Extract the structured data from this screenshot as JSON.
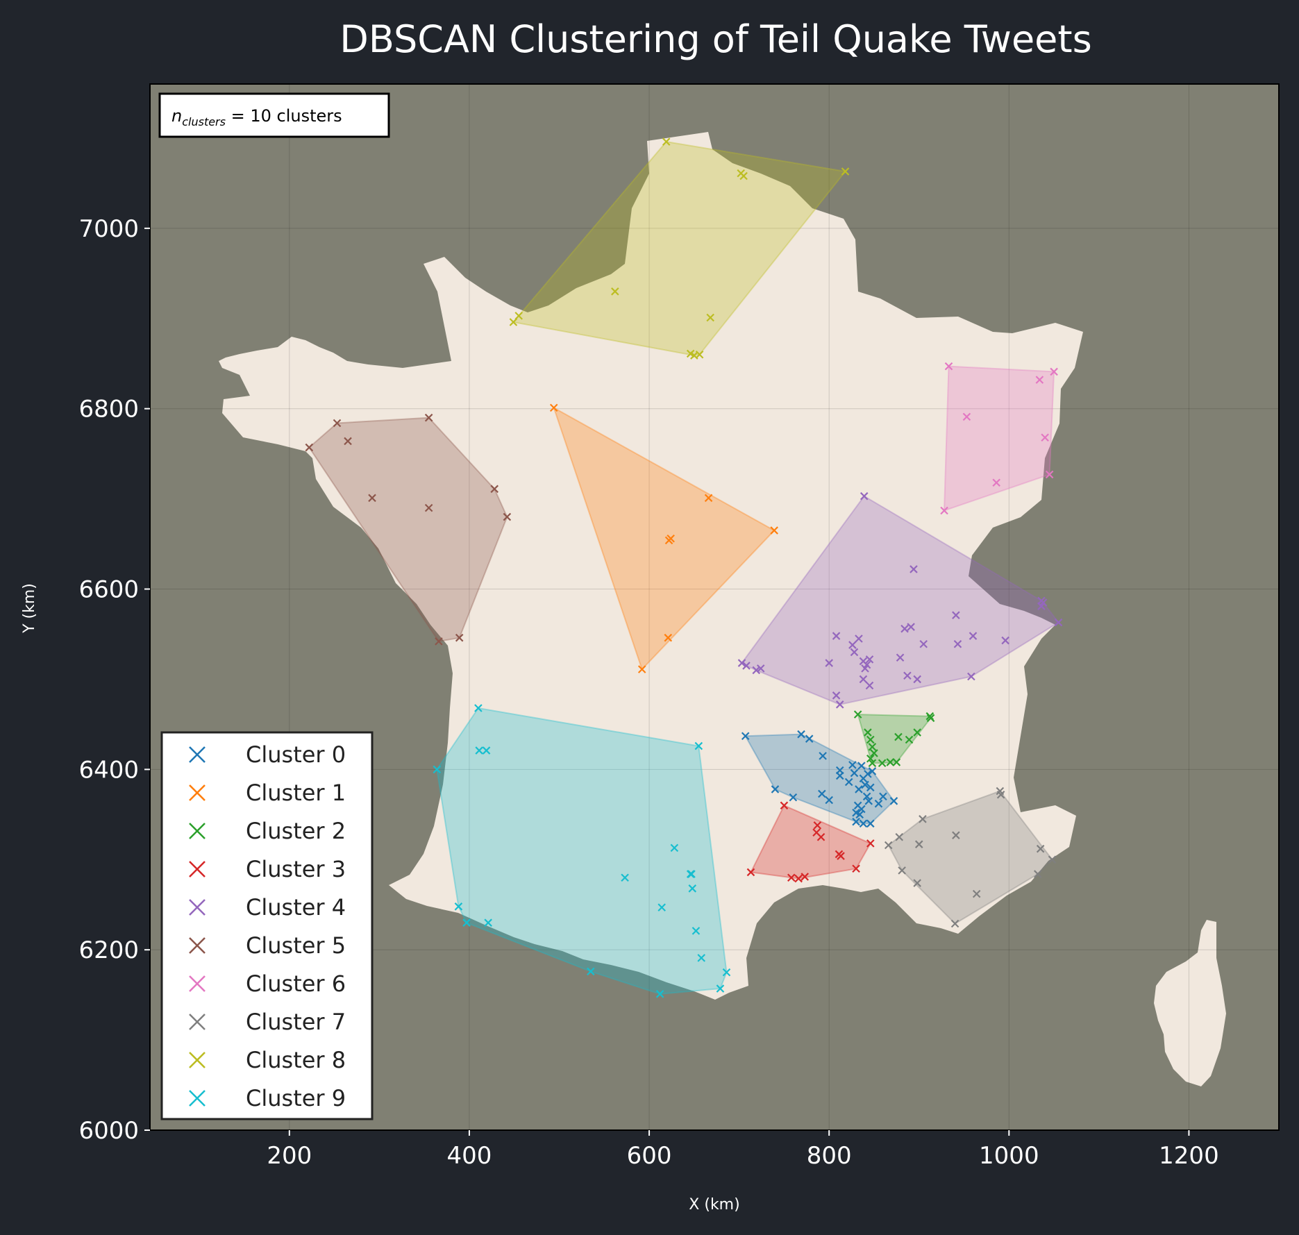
{
  "chart_data": {
    "type": "scatter",
    "title": "DBSCAN Clustering of Teil Quake Tweets",
    "xlabel": "X (km)",
    "ylabel": "Y (km)",
    "xlim": [
      45,
      1300
    ],
    "ylim": [
      6000,
      7160
    ],
    "xticks": [
      200,
      400,
      600,
      800,
      1000,
      1200
    ],
    "yticks": [
      6000,
      6200,
      6400,
      6600,
      6800,
      7000
    ],
    "grid": true,
    "annotation": {
      "symbol": "n",
      "subscript": "clusters",
      "rest": " = 10 clusters"
    },
    "legend_position": "lower-left",
    "background": {
      "figure": "#21252c",
      "axes": "#808073",
      "land": "#f1e8de"
    },
    "series": [
      {
        "name": "Cluster 0",
        "color": "#1f77b4",
        "points": [
          [
            707,
            6437
          ],
          [
            769,
            6439
          ],
          [
            778,
            6434
          ],
          [
            793,
            6415
          ],
          [
            740,
            6378
          ],
          [
            760,
            6369
          ],
          [
            792,
            6373
          ],
          [
            800,
            6366
          ],
          [
            812,
            6399
          ],
          [
            812,
            6393
          ],
          [
            822,
            6386
          ],
          [
            826,
            6405
          ],
          [
            828,
            6396
          ],
          [
            833,
            6378
          ],
          [
            832,
            6360
          ],
          [
            834,
            6350
          ],
          [
            836,
            6356
          ],
          [
            838,
            6390
          ],
          [
            840,
            6383
          ],
          [
            842,
            6370
          ],
          [
            844,
            6365
          ],
          [
            846,
            6380
          ],
          [
            848,
            6398
          ],
          [
            836,
            6404
          ],
          [
            830,
            6342
          ],
          [
            838,
            6340
          ],
          [
            846,
            6340
          ],
          [
            855,
            6362
          ],
          [
            860,
            6370
          ],
          [
            872,
            6365
          ],
          [
            843,
            6395
          ],
          [
            830,
            6352
          ]
        ]
      },
      {
        "name": "Cluster 1",
        "color": "#ff7f0e",
        "points": [
          [
            494,
            6801
          ],
          [
            666,
            6701
          ],
          [
            739,
            6665
          ],
          [
            624,
            6656
          ],
          [
            622,
            6654
          ],
          [
            621,
            6546
          ],
          [
            592,
            6511
          ]
        ]
      },
      {
        "name": "Cluster 2",
        "color": "#2ca02c",
        "points": [
          [
            832,
            6461
          ],
          [
            843,
            6441
          ],
          [
            846,
            6433
          ],
          [
            848,
            6425
          ],
          [
            850,
            6418
          ],
          [
            846,
            6412
          ],
          [
            848,
            6407
          ],
          [
            859,
            6407
          ],
          [
            868,
            6408
          ],
          [
            875,
            6408
          ],
          [
            877,
            6436
          ],
          [
            889,
            6433
          ],
          [
            898,
            6441
          ],
          [
            912,
            6459
          ],
          [
            913,
            6457
          ]
        ]
      },
      {
        "name": "Cluster 3",
        "color": "#d62728",
        "points": [
          [
            750,
            6360
          ],
          [
            787,
            6338
          ],
          [
            786,
            6330
          ],
          [
            791,
            6325
          ],
          [
            811,
            6306
          ],
          [
            813,
            6304
          ],
          [
            846,
            6318
          ],
          [
            830,
            6290
          ],
          [
            713,
            6286
          ],
          [
            758,
            6280
          ],
          [
            766,
            6279
          ],
          [
            773,
            6281
          ]
        ]
      },
      {
        "name": "Cluster 4",
        "color": "#9467bd",
        "points": [
          [
            839,
            6703
          ],
          [
            894,
            6622
          ],
          [
            1036,
            6587
          ],
          [
            1036,
            6581
          ],
          [
            1038,
            6585
          ],
          [
            1055,
            6563
          ],
          [
            941,
            6571
          ],
          [
            960,
            6548
          ],
          [
            996,
            6543
          ],
          [
            943,
            6539
          ],
          [
            905,
            6539
          ],
          [
            884,
            6556
          ],
          [
            891,
            6558
          ],
          [
            879,
            6524
          ],
          [
            833,
            6545
          ],
          [
            826,
            6538
          ],
          [
            828,
            6530
          ],
          [
            808,
            6548
          ],
          [
            800,
            6518
          ],
          [
            838,
            6520
          ],
          [
            842,
            6516
          ],
          [
            845,
            6522
          ],
          [
            840,
            6512
          ],
          [
            838,
            6500
          ],
          [
            845,
            6493
          ],
          [
            808,
            6482
          ],
          [
            812,
            6472
          ],
          [
            703,
            6518
          ],
          [
            708,
            6515
          ],
          [
            719,
            6510
          ],
          [
            724,
            6512
          ],
          [
            887,
            6504
          ],
          [
            898,
            6500
          ],
          [
            958,
            6503
          ]
        ]
      },
      {
        "name": "Cluster 5",
        "color": "#8c564b",
        "points": [
          [
            222,
            6757
          ],
          [
            253,
            6784
          ],
          [
            265,
            6764
          ],
          [
            355,
            6790
          ],
          [
            428,
            6711
          ],
          [
            442,
            6680
          ],
          [
            355,
            6690
          ],
          [
            292,
            6701
          ],
          [
            389,
            6546
          ],
          [
            366,
            6542
          ]
        ]
      },
      {
        "name": "Cluster 6",
        "color": "#e377c2",
        "points": [
          [
            933,
            6847
          ],
          [
            1034,
            6832
          ],
          [
            1050,
            6841
          ],
          [
            953,
            6791
          ],
          [
            1040,
            6768
          ],
          [
            986,
            6718
          ],
          [
            1045,
            6727
          ],
          [
            928,
            6687
          ]
        ]
      },
      {
        "name": "Cluster 7",
        "color": "#7f7f7f",
        "points": [
          [
            990,
            6376
          ],
          [
            991,
            6372
          ],
          [
            904,
            6345
          ],
          [
            878,
            6325
          ],
          [
            866,
            6316
          ],
          [
            900,
            6317
          ],
          [
            941,
            6327
          ],
          [
            1035,
            6312
          ],
          [
            1048,
            6300
          ],
          [
            881,
            6288
          ],
          [
            1032,
            6284
          ],
          [
            898,
            6274
          ],
          [
            964,
            6262
          ],
          [
            940,
            6229
          ]
        ]
      },
      {
        "name": "Cluster 8",
        "color": "#bcbd22",
        "points": [
          [
            619,
            7096
          ],
          [
            702,
            7061
          ],
          [
            705,
            7058
          ],
          [
            818,
            7063
          ],
          [
            562,
            6930
          ],
          [
            668,
            6901
          ],
          [
            455,
            6903
          ],
          [
            449,
            6896
          ],
          [
            646,
            6861
          ],
          [
            650,
            6859
          ],
          [
            656,
            6860
          ]
        ]
      },
      {
        "name": "Cluster 9",
        "color": "#17becf",
        "points": [
          [
            410,
            6468
          ],
          [
            364,
            6400
          ],
          [
            411,
            6421
          ],
          [
            419,
            6421
          ],
          [
            655,
            6426
          ],
          [
            628,
            6313
          ],
          [
            646,
            6284
          ],
          [
            647,
            6284
          ],
          [
            648,
            6268
          ],
          [
            573,
            6280
          ],
          [
            388,
            6248
          ],
          [
            614,
            6247
          ],
          [
            397,
            6230
          ],
          [
            421,
            6230
          ],
          [
            652,
            6221
          ],
          [
            658,
            6191
          ],
          [
            686,
            6175
          ],
          [
            535,
            6176
          ],
          [
            679,
            6157
          ],
          [
            612,
            6151
          ]
        ]
      }
    ]
  }
}
